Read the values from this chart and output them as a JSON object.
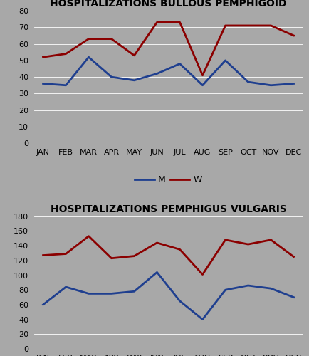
{
  "months": [
    "JAN",
    "FEB",
    "MAR",
    "APR",
    "MAY",
    "JUN",
    "JUL",
    "AUG",
    "SEP",
    "OCT",
    "NOV",
    "DEC"
  ],
  "bp_M": [
    36,
    35,
    52,
    40,
    38,
    42,
    48,
    35,
    50,
    37,
    35,
    36
  ],
  "bp_W": [
    52,
    54,
    63,
    63,
    53,
    73,
    73,
    41,
    71,
    71,
    71,
    65
  ],
  "pv_M": [
    60,
    84,
    75,
    75,
    78,
    104,
    65,
    40,
    80,
    86,
    82,
    70
  ],
  "pv_W": [
    127,
    129,
    153,
    123,
    126,
    144,
    135,
    101,
    148,
    142,
    148,
    125
  ],
  "bp_title": "HOSPITALIZATIONS BULLOUS PEMPHIGOID",
  "pv_title": "HOSPITALIZATIONS PEMPHIGUS VULGARIS",
  "bp_ylim": [
    0,
    80
  ],
  "bp_yticks": [
    0,
    10,
    20,
    30,
    40,
    50,
    60,
    70,
    80
  ],
  "pv_ylim": [
    0,
    180
  ],
  "pv_yticks": [
    0,
    20,
    40,
    60,
    80,
    100,
    120,
    140,
    160,
    180
  ],
  "color_M": "#1f3f8f",
  "color_W": "#8b0000",
  "bg_color": "#a8a8a8",
  "legend_M": "M",
  "legend_W": "W",
  "title_fontsize": 10,
  "tick_fontsize": 8,
  "legend_fontsize": 9,
  "line_width": 2.0
}
